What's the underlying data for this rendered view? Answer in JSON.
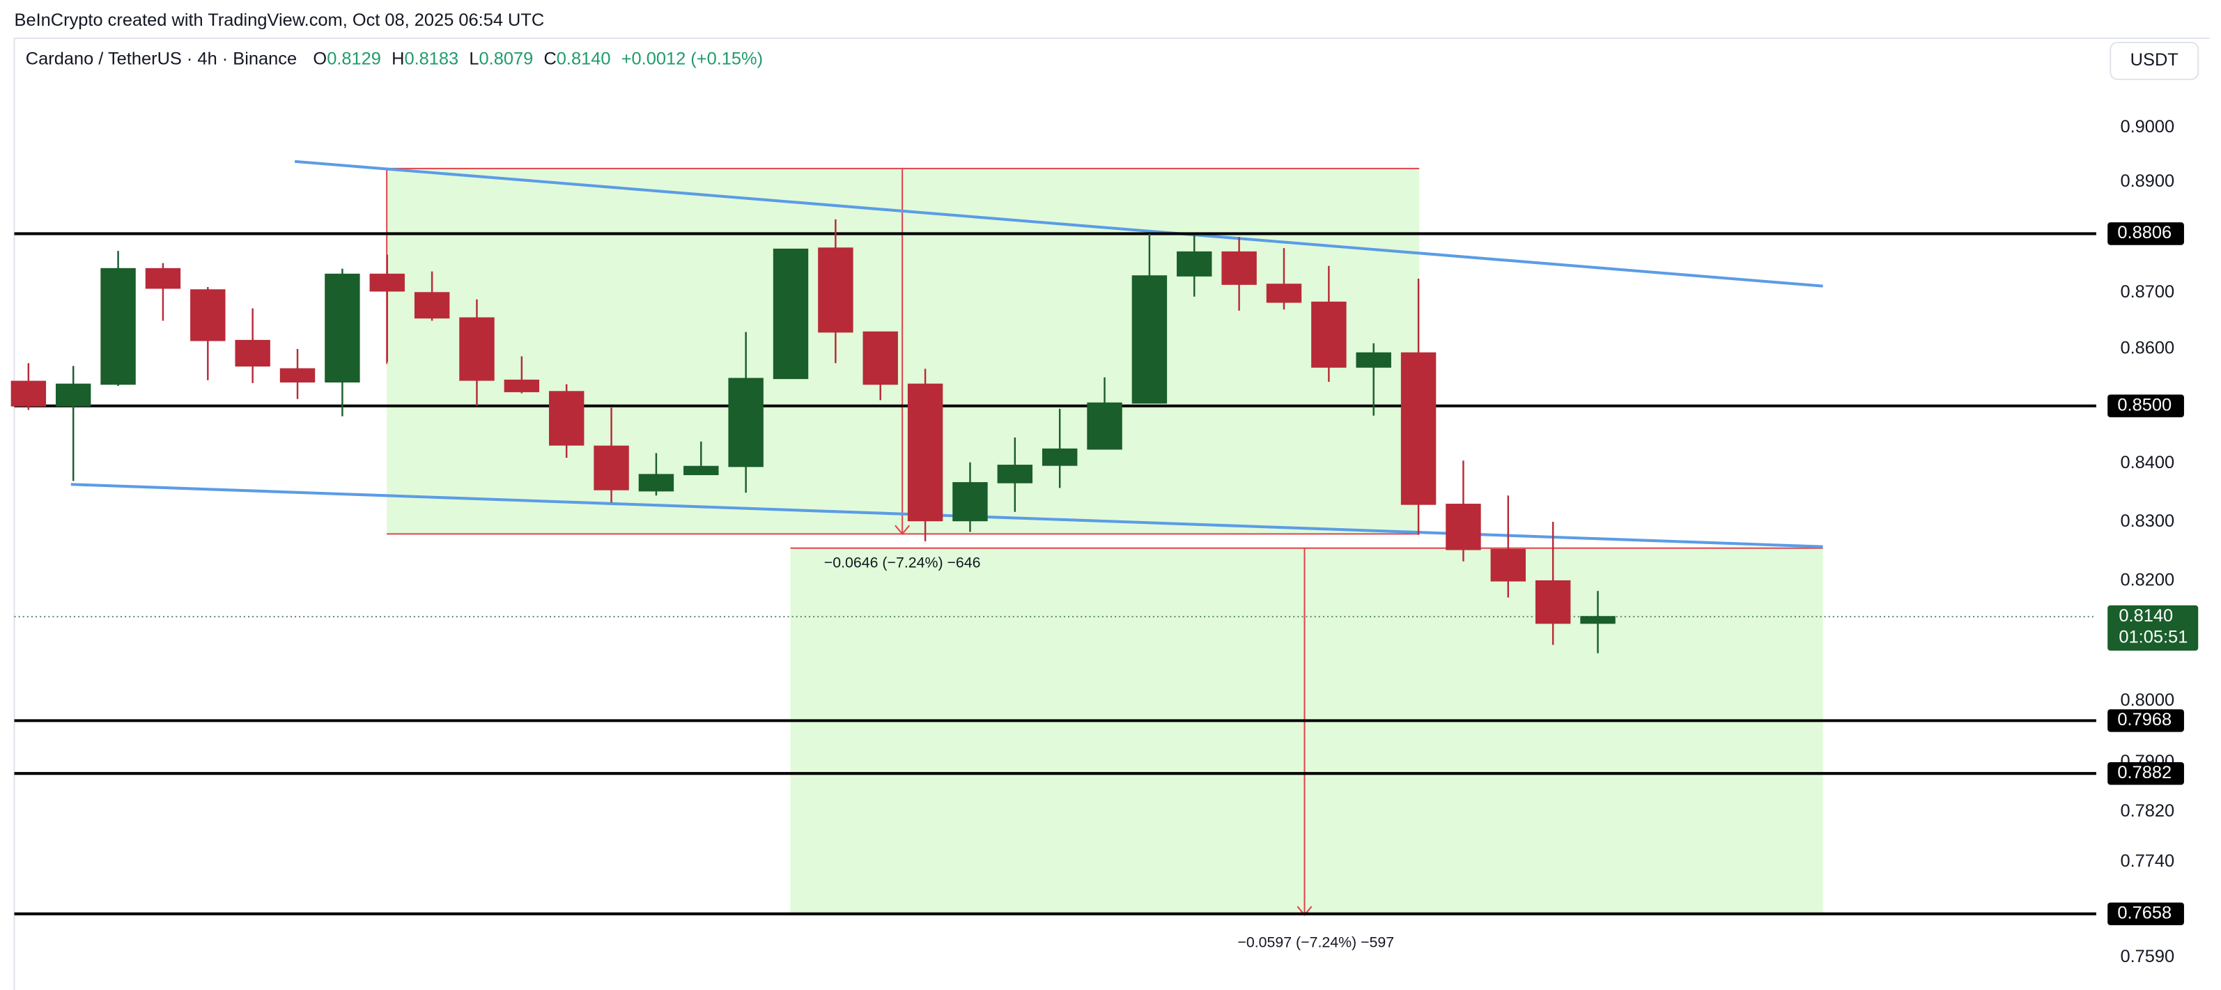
{
  "chart_data": {
    "type": "candlestick",
    "title": "BeInCrypto created with TradingView.com, Oct 08, 2025 06:54 UTC",
    "subtitle": "Cardano / TetherUS · 4h · Binance",
    "ohlc": [
      {
        "key": "O",
        "value": "0.8129"
      },
      {
        "key": "H",
        "value": "0.8183"
      },
      {
        "key": "L",
        "value": "0.8079"
      },
      {
        "key": "C",
        "value": "0.8140"
      }
    ],
    "change": "+0.0012 (+0.15%)",
    "currency": "USDT",
    "log_scale": true,
    "up_color": "#1a5e2b",
    "down_color": "#b82a38",
    "open": [
      0.8543,
      0.85,
      0.8538,
      0.8743,
      0.8705,
      0.8615,
      0.8565,
      0.8542,
      0.8733,
      0.87,
      0.8655,
      0.8545,
      0.8525,
      0.843,
      0.8353,
      0.8381,
      0.8395,
      0.8548,
      0.878,
      0.863,
      0.8538,
      0.8302,
      0.8367,
      0.8397,
      0.8425,
      0.8505,
      0.873,
      0.8773,
      0.8715,
      0.8683,
      0.8568,
      0.8593,
      0.833,
      0.8253,
      0.82,
      0.8129
    ],
    "high": [
      0.8575,
      0.857,
      0.8775,
      0.8753,
      0.871,
      0.8672,
      0.86,
      0.8743,
      0.8768,
      0.8738,
      0.8688,
      0.8587,
      0.8538,
      0.8497,
      0.8418,
      0.8438,
      0.863,
      0.8778,
      0.8832,
      0.863,
      0.8565,
      0.8402,
      0.8445,
      0.8495,
      0.855,
      0.8806,
      0.8803,
      0.88,
      0.878,
      0.8748,
      0.861,
      0.8725,
      0.8405,
      0.8345,
      0.83,
      0.8183
    ],
    "low": [
      0.8493,
      0.837,
      0.8535,
      0.865,
      0.8545,
      0.854,
      0.8512,
      0.8482,
      0.8577,
      0.865,
      0.85,
      0.8522,
      0.841,
      0.8333,
      0.8345,
      0.8381,
      0.835,
      0.8548,
      0.8575,
      0.851,
      0.8267,
      0.8283,
      0.8317,
      0.8358,
      0.8425,
      0.8505,
      0.8693,
      0.8668,
      0.867,
      0.8542,
      0.8483,
      0.8278,
      0.8233,
      0.8172,
      0.8093,
      0.8079
    ],
    "close": [
      0.85,
      0.8538,
      0.8743,
      0.8708,
      0.8615,
      0.857,
      0.8542,
      0.8733,
      0.8703,
      0.8655,
      0.8545,
      0.8525,
      0.8432,
      0.8355,
      0.8381,
      0.8395,
      0.8548,
      0.8778,
      0.863,
      0.8538,
      0.8302,
      0.8367,
      0.8397,
      0.8425,
      0.8505,
      0.873,
      0.8773,
      0.8715,
      0.8683,
      0.8568,
      0.8593,
      0.833,
      0.8253,
      0.82,
      0.8129,
      0.814
    ],
    "ylim": [
      0.7537,
      0.9164
    ],
    "yticks": [
      {
        "value": 0.9,
        "label": "0.9000"
      },
      {
        "value": 0.89,
        "label": "0.8900"
      },
      {
        "value": 0.87,
        "label": "0.8700"
      },
      {
        "value": 0.86,
        "label": "0.8600"
      },
      {
        "value": 0.84,
        "label": "0.8400"
      },
      {
        "value": 0.83,
        "label": "0.8300"
      },
      {
        "value": 0.82,
        "label": "0.8200"
      },
      {
        "value": 0.8,
        "label": "0.8000"
      },
      {
        "value": 0.79,
        "label": "0.7900"
      },
      {
        "value": 0.782,
        "label": "0.7820"
      },
      {
        "value": 0.774,
        "label": "0.7740"
      },
      {
        "value": 0.759,
        "label": "0.7590"
      }
    ],
    "levels": [
      {
        "value": 0.8806,
        "label": "0.8806"
      },
      {
        "value": 0.85,
        "label": "0.8500"
      },
      {
        "value": 0.7968,
        "label": "0.7968"
      },
      {
        "value": 0.7882,
        "label": "0.7882"
      },
      {
        "value": 0.7658,
        "label": "0.7658"
      }
    ],
    "last_price": {
      "value": 0.814,
      "label": "0.8140",
      "countdown": "01:05:51"
    },
    "annotations": [
      "−0.0646 (−7.24%) −646",
      "−0.0597 (−7.24%) −597"
    ]
  }
}
